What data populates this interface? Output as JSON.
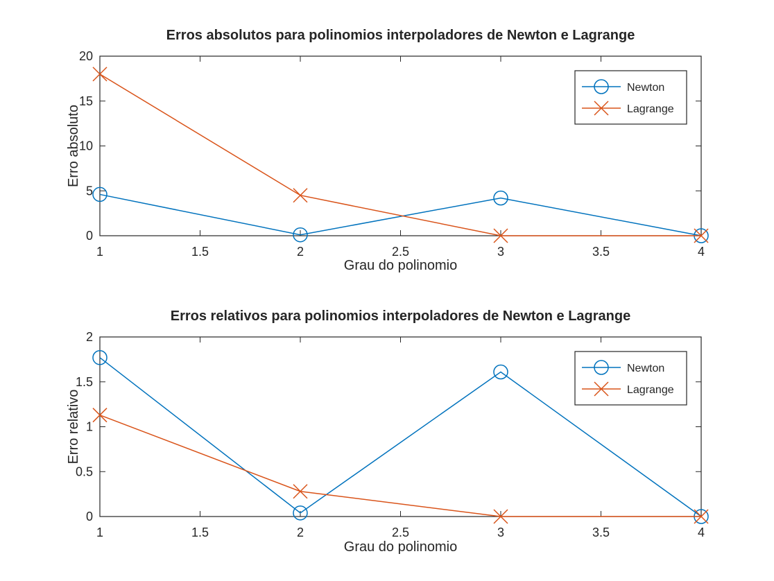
{
  "colors": {
    "newton": "#0072BD",
    "lagrange": "#D95319",
    "axis": "#262626",
    "background": "#ffffff"
  },
  "chart_data": [
    {
      "type": "line",
      "title": "Erros absolutos para polinomios interpoladores de Newton e Lagrange",
      "xlabel": "Grau do polinomio",
      "ylabel": "Erro absoluto",
      "xlim": [
        1,
        4
      ],
      "ylim": [
        0,
        20
      ],
      "xticks": [
        1,
        1.5,
        2,
        2.5,
        3,
        3.5,
        4
      ],
      "xtick_labels": [
        "1",
        "1.5",
        "2",
        "2.5",
        "3",
        "3.5",
        "4"
      ],
      "yticks": [
        0,
        5,
        10,
        15,
        20
      ],
      "ytick_labels": [
        "0",
        "5",
        "10",
        "15",
        "20"
      ],
      "grid": false,
      "legend_position": "top-right",
      "x": [
        1,
        2,
        3,
        4
      ],
      "series": [
        {
          "name": "Newton",
          "marker": "circle",
          "values": [
            4.6,
            0.1,
            4.2,
            0.0
          ]
        },
        {
          "name": "Lagrange",
          "marker": "x",
          "values": [
            18.0,
            4.5,
            0.0,
            0.0
          ]
        }
      ]
    },
    {
      "type": "line",
      "title": "Erros relativos para polinomios interpoladores de Newton e Lagrange",
      "xlabel": "Grau do polinomio",
      "ylabel": "Erro relativo",
      "xlim": [
        1,
        4
      ],
      "ylim": [
        0,
        2
      ],
      "xticks": [
        1,
        1.5,
        2,
        2.5,
        3,
        3.5,
        4
      ],
      "xtick_labels": [
        "1",
        "1.5",
        "2",
        "2.5",
        "3",
        "3.5",
        "4"
      ],
      "yticks": [
        0,
        0.5,
        1,
        1.5,
        2
      ],
      "ytick_labels": [
        "0",
        "0.5",
        "1",
        "1.5",
        "2"
      ],
      "grid": false,
      "legend_position": "top-right",
      "x": [
        1,
        2,
        3,
        4
      ],
      "series": [
        {
          "name": "Newton",
          "marker": "circle",
          "values": [
            1.77,
            0.04,
            1.61,
            0.0
          ]
        },
        {
          "name": "Lagrange",
          "marker": "x",
          "values": [
            1.13,
            0.28,
            0.0,
            0.0
          ]
        }
      ]
    }
  ]
}
